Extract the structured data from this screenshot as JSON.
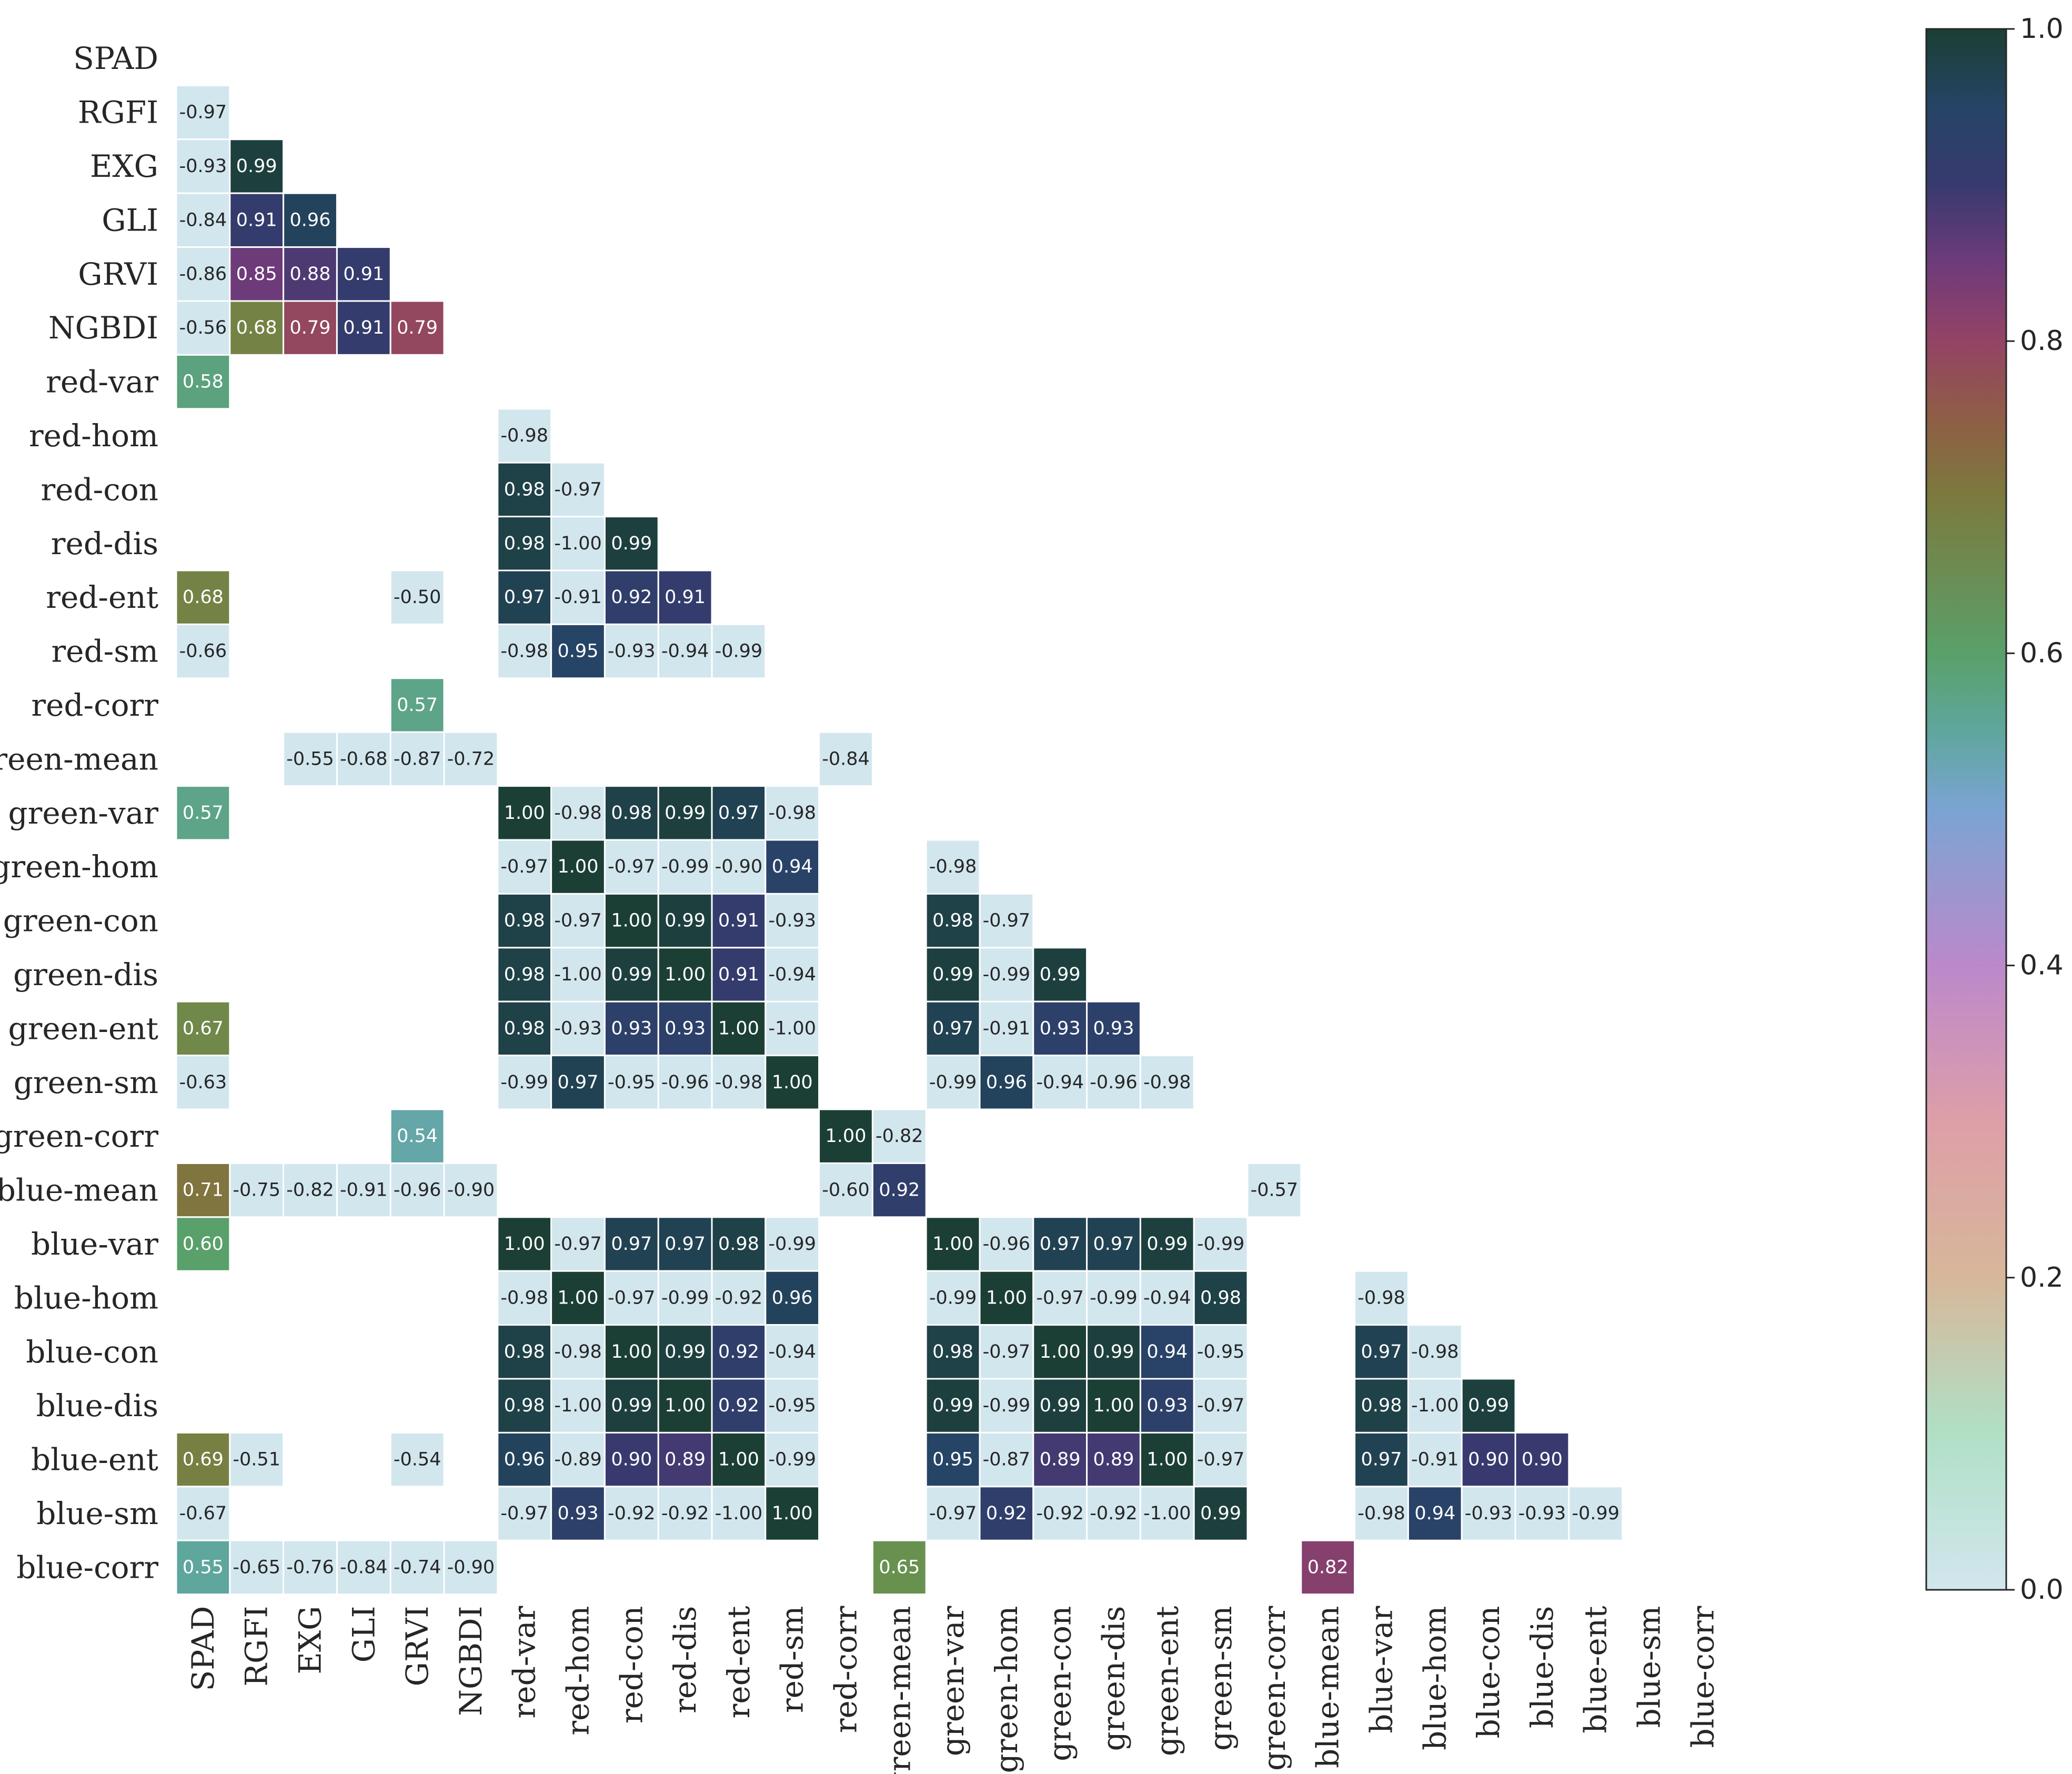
{
  "chart_data": {
    "type": "heatmap",
    "title": "",
    "xlabel": "",
    "ylabel": "",
    "colormap": "cubehelix (reversed, light blue to dark green)",
    "color_range": [
      0.0,
      1.0
    ],
    "colorbar_ticks": [
      "0.0",
      "0.2",
      "0.4",
      "0.6",
      "0.8",
      "1.0"
    ],
    "labels": [
      "SPAD",
      "RGFI",
      "EXG",
      "GLI",
      "GRVI",
      "NGBDI",
      "red-var",
      "red-hom",
      "red-con",
      "red-dis",
      "red-ent",
      "red-sm",
      "red-corr",
      "green-mean",
      "green-var",
      "green-hom",
      "green-con",
      "green-dis",
      "green-ent",
      "green-sm",
      "green-corr",
      "blue-mean",
      "blue-var",
      "blue-hom",
      "blue-con",
      "blue-dis",
      "blue-ent",
      "blue-sm",
      "blue-corr"
    ],
    "cells": [
      {
        "r": 1,
        "c": 0,
        "v": "-0.97"
      },
      {
        "r": 2,
        "c": 0,
        "v": "-0.93"
      },
      {
        "r": 2,
        "c": 1,
        "v": "0.99"
      },
      {
        "r": 3,
        "c": 0,
        "v": "-0.84"
      },
      {
        "r": 3,
        "c": 1,
        "v": "0.91"
      },
      {
        "r": 3,
        "c": 2,
        "v": "0.96"
      },
      {
        "r": 4,
        "c": 0,
        "v": "-0.86"
      },
      {
        "r": 4,
        "c": 1,
        "v": "0.85"
      },
      {
        "r": 4,
        "c": 2,
        "v": "0.88"
      },
      {
        "r": 4,
        "c": 3,
        "v": "0.91"
      },
      {
        "r": 5,
        "c": 0,
        "v": "-0.56"
      },
      {
        "r": 5,
        "c": 1,
        "v": "0.68"
      },
      {
        "r": 5,
        "c": 2,
        "v": "0.79"
      },
      {
        "r": 5,
        "c": 3,
        "v": "0.91"
      },
      {
        "r": 5,
        "c": 4,
        "v": "0.79"
      },
      {
        "r": 6,
        "c": 0,
        "v": "0.58"
      },
      {
        "r": 7,
        "c": 6,
        "v": "-0.98"
      },
      {
        "r": 8,
        "c": 6,
        "v": "0.98"
      },
      {
        "r": 8,
        "c": 7,
        "v": "-0.97"
      },
      {
        "r": 9,
        "c": 6,
        "v": "0.98"
      },
      {
        "r": 9,
        "c": 7,
        "v": "-1.00"
      },
      {
        "r": 9,
        "c": 8,
        "v": "0.99"
      },
      {
        "r": 10,
        "c": 0,
        "v": "0.68"
      },
      {
        "r": 10,
        "c": 4,
        "v": "-0.50"
      },
      {
        "r": 10,
        "c": 6,
        "v": "0.97"
      },
      {
        "r": 10,
        "c": 7,
        "v": "-0.91"
      },
      {
        "r": 10,
        "c": 8,
        "v": "0.92"
      },
      {
        "r": 10,
        "c": 9,
        "v": "0.91"
      },
      {
        "r": 11,
        "c": 0,
        "v": "-0.66"
      },
      {
        "r": 11,
        "c": 6,
        "v": "-0.98"
      },
      {
        "r": 11,
        "c": 7,
        "v": "0.95"
      },
      {
        "r": 11,
        "c": 8,
        "v": "-0.93"
      },
      {
        "r": 11,
        "c": 9,
        "v": "-0.94"
      },
      {
        "r": 11,
        "c": 10,
        "v": "-0.99"
      },
      {
        "r": 12,
        "c": 4,
        "v": "0.57"
      },
      {
        "r": 13,
        "c": 2,
        "v": "-0.55"
      },
      {
        "r": 13,
        "c": 3,
        "v": "-0.68"
      },
      {
        "r": 13,
        "c": 4,
        "v": "-0.87"
      },
      {
        "r": 13,
        "c": 5,
        "v": "-0.72"
      },
      {
        "r": 13,
        "c": 12,
        "v": "-0.84"
      },
      {
        "r": 14,
        "c": 0,
        "v": "0.57"
      },
      {
        "r": 14,
        "c": 6,
        "v": "1.00"
      },
      {
        "r": 14,
        "c": 7,
        "v": "-0.98"
      },
      {
        "r": 14,
        "c": 8,
        "v": "0.98"
      },
      {
        "r": 14,
        "c": 9,
        "v": "0.99"
      },
      {
        "r": 14,
        "c": 10,
        "v": "0.97"
      },
      {
        "r": 14,
        "c": 11,
        "v": "-0.98"
      },
      {
        "r": 15,
        "c": 6,
        "v": "-0.97"
      },
      {
        "r": 15,
        "c": 7,
        "v": "1.00"
      },
      {
        "r": 15,
        "c": 8,
        "v": "-0.97"
      },
      {
        "r": 15,
        "c": 9,
        "v": "-0.99"
      },
      {
        "r": 15,
        "c": 10,
        "v": "-0.90"
      },
      {
        "r": 15,
        "c": 11,
        "v": "0.94"
      },
      {
        "r": 15,
        "c": 14,
        "v": "-0.98"
      },
      {
        "r": 16,
        "c": 6,
        "v": "0.98"
      },
      {
        "r": 16,
        "c": 7,
        "v": "-0.97"
      },
      {
        "r": 16,
        "c": 8,
        "v": "1.00"
      },
      {
        "r": 16,
        "c": 9,
        "v": "0.99"
      },
      {
        "r": 16,
        "c": 10,
        "v": "0.91"
      },
      {
        "r": 16,
        "c": 11,
        "v": "-0.93"
      },
      {
        "r": 16,
        "c": 14,
        "v": "0.98"
      },
      {
        "r": 16,
        "c": 15,
        "v": "-0.97"
      },
      {
        "r": 17,
        "c": 6,
        "v": "0.98"
      },
      {
        "r": 17,
        "c": 7,
        "v": "-1.00"
      },
      {
        "r": 17,
        "c": 8,
        "v": "0.99"
      },
      {
        "r": 17,
        "c": 9,
        "v": "1.00"
      },
      {
        "r": 17,
        "c": 10,
        "v": "0.91"
      },
      {
        "r": 17,
        "c": 11,
        "v": "-0.94"
      },
      {
        "r": 17,
        "c": 14,
        "v": "0.99"
      },
      {
        "r": 17,
        "c": 15,
        "v": "-0.99"
      },
      {
        "r": 17,
        "c": 16,
        "v": "0.99"
      },
      {
        "r": 18,
        "c": 0,
        "v": "0.67"
      },
      {
        "r": 18,
        "c": 6,
        "v": "0.98"
      },
      {
        "r": 18,
        "c": 7,
        "v": "-0.93"
      },
      {
        "r": 18,
        "c": 8,
        "v": "0.93"
      },
      {
        "r": 18,
        "c": 9,
        "v": "0.93"
      },
      {
        "r": 18,
        "c": 10,
        "v": "1.00"
      },
      {
        "r": 18,
        "c": 11,
        "v": "-1.00"
      },
      {
        "r": 18,
        "c": 14,
        "v": "0.97"
      },
      {
        "r": 18,
        "c": 15,
        "v": "-0.91"
      },
      {
        "r": 18,
        "c": 16,
        "v": "0.93"
      },
      {
        "r": 18,
        "c": 17,
        "v": "0.93"
      },
      {
        "r": 19,
        "c": 0,
        "v": "-0.63"
      },
      {
        "r": 19,
        "c": 6,
        "v": "-0.99"
      },
      {
        "r": 19,
        "c": 7,
        "v": "0.97"
      },
      {
        "r": 19,
        "c": 8,
        "v": "-0.95"
      },
      {
        "r": 19,
        "c": 9,
        "v": "-0.96"
      },
      {
        "r": 19,
        "c": 10,
        "v": "-0.98"
      },
      {
        "r": 19,
        "c": 11,
        "v": "1.00"
      },
      {
        "r": 19,
        "c": 14,
        "v": "-0.99"
      },
      {
        "r": 19,
        "c": 15,
        "v": "0.96"
      },
      {
        "r": 19,
        "c": 16,
        "v": "-0.94"
      },
      {
        "r": 19,
        "c": 17,
        "v": "-0.96"
      },
      {
        "r": 19,
        "c": 18,
        "v": "-0.98"
      },
      {
        "r": 20,
        "c": 4,
        "v": "0.54"
      },
      {
        "r": 20,
        "c": 12,
        "v": "1.00"
      },
      {
        "r": 20,
        "c": 13,
        "v": "-0.82"
      },
      {
        "r": 21,
        "c": 0,
        "v": "0.71"
      },
      {
        "r": 21,
        "c": 1,
        "v": "-0.75"
      },
      {
        "r": 21,
        "c": 2,
        "v": "-0.82"
      },
      {
        "r": 21,
        "c": 3,
        "v": "-0.91"
      },
      {
        "r": 21,
        "c": 4,
        "v": "-0.96"
      },
      {
        "r": 21,
        "c": 5,
        "v": "-0.90"
      },
      {
        "r": 21,
        "c": 12,
        "v": "-0.60"
      },
      {
        "r": 21,
        "c": 13,
        "v": "0.92"
      },
      {
        "r": 21,
        "c": 20,
        "v": "-0.57"
      },
      {
        "r": 22,
        "c": 0,
        "v": "0.60"
      },
      {
        "r": 22,
        "c": 6,
        "v": "1.00"
      },
      {
        "r": 22,
        "c": 7,
        "v": "-0.97"
      },
      {
        "r": 22,
        "c": 8,
        "v": "0.97"
      },
      {
        "r": 22,
        "c": 9,
        "v": "0.97"
      },
      {
        "r": 22,
        "c": 10,
        "v": "0.98"
      },
      {
        "r": 22,
        "c": 11,
        "v": "-0.99"
      },
      {
        "r": 22,
        "c": 14,
        "v": "1.00"
      },
      {
        "r": 22,
        "c": 15,
        "v": "-0.96"
      },
      {
        "r": 22,
        "c": 16,
        "v": "0.97"
      },
      {
        "r": 22,
        "c": 17,
        "v": "0.97"
      },
      {
        "r": 22,
        "c": 18,
        "v": "0.99"
      },
      {
        "r": 22,
        "c": 19,
        "v": "-0.99"
      },
      {
        "r": 23,
        "c": 6,
        "v": "-0.98"
      },
      {
        "r": 23,
        "c": 7,
        "v": "1.00"
      },
      {
        "r": 23,
        "c": 8,
        "v": "-0.97"
      },
      {
        "r": 23,
        "c": 9,
        "v": "-0.99"
      },
      {
        "r": 23,
        "c": 10,
        "v": "-0.92"
      },
      {
        "r": 23,
        "c": 11,
        "v": "0.96"
      },
      {
        "r": 23,
        "c": 14,
        "v": "-0.99"
      },
      {
        "r": 23,
        "c": 15,
        "v": "1.00"
      },
      {
        "r": 23,
        "c": 16,
        "v": "-0.97"
      },
      {
        "r": 23,
        "c": 17,
        "v": "-0.99"
      },
      {
        "r": 23,
        "c": 18,
        "v": "-0.94"
      },
      {
        "r": 23,
        "c": 19,
        "v": "0.98"
      },
      {
        "r": 23,
        "c": 22,
        "v": "-0.98"
      },
      {
        "r": 24,
        "c": 6,
        "v": "0.98"
      },
      {
        "r": 24,
        "c": 7,
        "v": "-0.98"
      },
      {
        "r": 24,
        "c": 8,
        "v": "1.00"
      },
      {
        "r": 24,
        "c": 9,
        "v": "0.99"
      },
      {
        "r": 24,
        "c": 10,
        "v": "0.92"
      },
      {
        "r": 24,
        "c": 11,
        "v": "-0.94"
      },
      {
        "r": 24,
        "c": 14,
        "v": "0.98"
      },
      {
        "r": 24,
        "c": 15,
        "v": "-0.97"
      },
      {
        "r": 24,
        "c": 16,
        "v": "1.00"
      },
      {
        "r": 24,
        "c": 17,
        "v": "0.99"
      },
      {
        "r": 24,
        "c": 18,
        "v": "0.94"
      },
      {
        "r": 24,
        "c": 19,
        "v": "-0.95"
      },
      {
        "r": 24,
        "c": 22,
        "v": "0.97"
      },
      {
        "r": 24,
        "c": 23,
        "v": "-0.98"
      },
      {
        "r": 25,
        "c": 6,
        "v": "0.98"
      },
      {
        "r": 25,
        "c": 7,
        "v": "-1.00"
      },
      {
        "r": 25,
        "c": 8,
        "v": "0.99"
      },
      {
        "r": 25,
        "c": 9,
        "v": "1.00"
      },
      {
        "r": 25,
        "c": 10,
        "v": "0.92"
      },
      {
        "r": 25,
        "c": 11,
        "v": "-0.95"
      },
      {
        "r": 25,
        "c": 14,
        "v": "0.99"
      },
      {
        "r": 25,
        "c": 15,
        "v": "-0.99"
      },
      {
        "r": 25,
        "c": 16,
        "v": "0.99"
      },
      {
        "r": 25,
        "c": 17,
        "v": "1.00"
      },
      {
        "r": 25,
        "c": 18,
        "v": "0.93"
      },
      {
        "r": 25,
        "c": 19,
        "v": "-0.97"
      },
      {
        "r": 25,
        "c": 22,
        "v": "0.98"
      },
      {
        "r": 25,
        "c": 23,
        "v": "-1.00"
      },
      {
        "r": 25,
        "c": 24,
        "v": "0.99"
      },
      {
        "r": 26,
        "c": 0,
        "v": "0.69"
      },
      {
        "r": 26,
        "c": 1,
        "v": "-0.51"
      },
      {
        "r": 26,
        "c": 4,
        "v": "-0.54"
      },
      {
        "r": 26,
        "c": 6,
        "v": "0.96"
      },
      {
        "r": 26,
        "c": 7,
        "v": "-0.89"
      },
      {
        "r": 26,
        "c": 8,
        "v": "0.90"
      },
      {
        "r": 26,
        "c": 9,
        "v": "0.89"
      },
      {
        "r": 26,
        "c": 10,
        "v": "1.00"
      },
      {
        "r": 26,
        "c": 11,
        "v": "-0.99"
      },
      {
        "r": 26,
        "c": 14,
        "v": "0.95"
      },
      {
        "r": 26,
        "c": 15,
        "v": "-0.87"
      },
      {
        "r": 26,
        "c": 16,
        "v": "0.89"
      },
      {
        "r": 26,
        "c": 17,
        "v": "0.89"
      },
      {
        "r": 26,
        "c": 18,
        "v": "1.00"
      },
      {
        "r": 26,
        "c": 19,
        "v": "-0.97"
      },
      {
        "r": 26,
        "c": 22,
        "v": "0.97"
      },
      {
        "r": 26,
        "c": 23,
        "v": "-0.91"
      },
      {
        "r": 26,
        "c": 24,
        "v": "0.90"
      },
      {
        "r": 26,
        "c": 25,
        "v": "0.90"
      },
      {
        "r": 27,
        "c": 0,
        "v": "-0.67"
      },
      {
        "r": 27,
        "c": 6,
        "v": "-0.97"
      },
      {
        "r": 27,
        "c": 7,
        "v": "0.93"
      },
      {
        "r": 27,
        "c": 8,
        "v": "-0.92"
      },
      {
        "r": 27,
        "c": 9,
        "v": "-0.92"
      },
      {
        "r": 27,
        "c": 10,
        "v": "-1.00"
      },
      {
        "r": 27,
        "c": 11,
        "v": "1.00"
      },
      {
        "r": 27,
        "c": 14,
        "v": "-0.97"
      },
      {
        "r": 27,
        "c": 15,
        "v": "0.92"
      },
      {
        "r": 27,
        "c": 16,
        "v": "-0.92"
      },
      {
        "r": 27,
        "c": 17,
        "v": "-0.92"
      },
      {
        "r": 27,
        "c": 18,
        "v": "-1.00"
      },
      {
        "r": 27,
        "c": 19,
        "v": "0.99"
      },
      {
        "r": 27,
        "c": 22,
        "v": "-0.98"
      },
      {
        "r": 27,
        "c": 23,
        "v": "0.94"
      },
      {
        "r": 27,
        "c": 24,
        "v": "-0.93"
      },
      {
        "r": 27,
        "c": 25,
        "v": "-0.93"
      },
      {
        "r": 27,
        "c": 26,
        "v": "-0.99"
      },
      {
        "r": 28,
        "c": 0,
        "v": "0.55"
      },
      {
        "r": 28,
        "c": 1,
        "v": "-0.65"
      },
      {
        "r": 28,
        "c": 2,
        "v": "-0.76"
      },
      {
        "r": 28,
        "c": 3,
        "v": "-0.84"
      },
      {
        "r": 28,
        "c": 4,
        "v": "-0.74"
      },
      {
        "r": 28,
        "c": 5,
        "v": "-0.90"
      },
      {
        "r": 28,
        "c": 13,
        "v": "0.65"
      },
      {
        "r": 28,
        "c": 21,
        "v": "0.82"
      }
    ]
  }
}
